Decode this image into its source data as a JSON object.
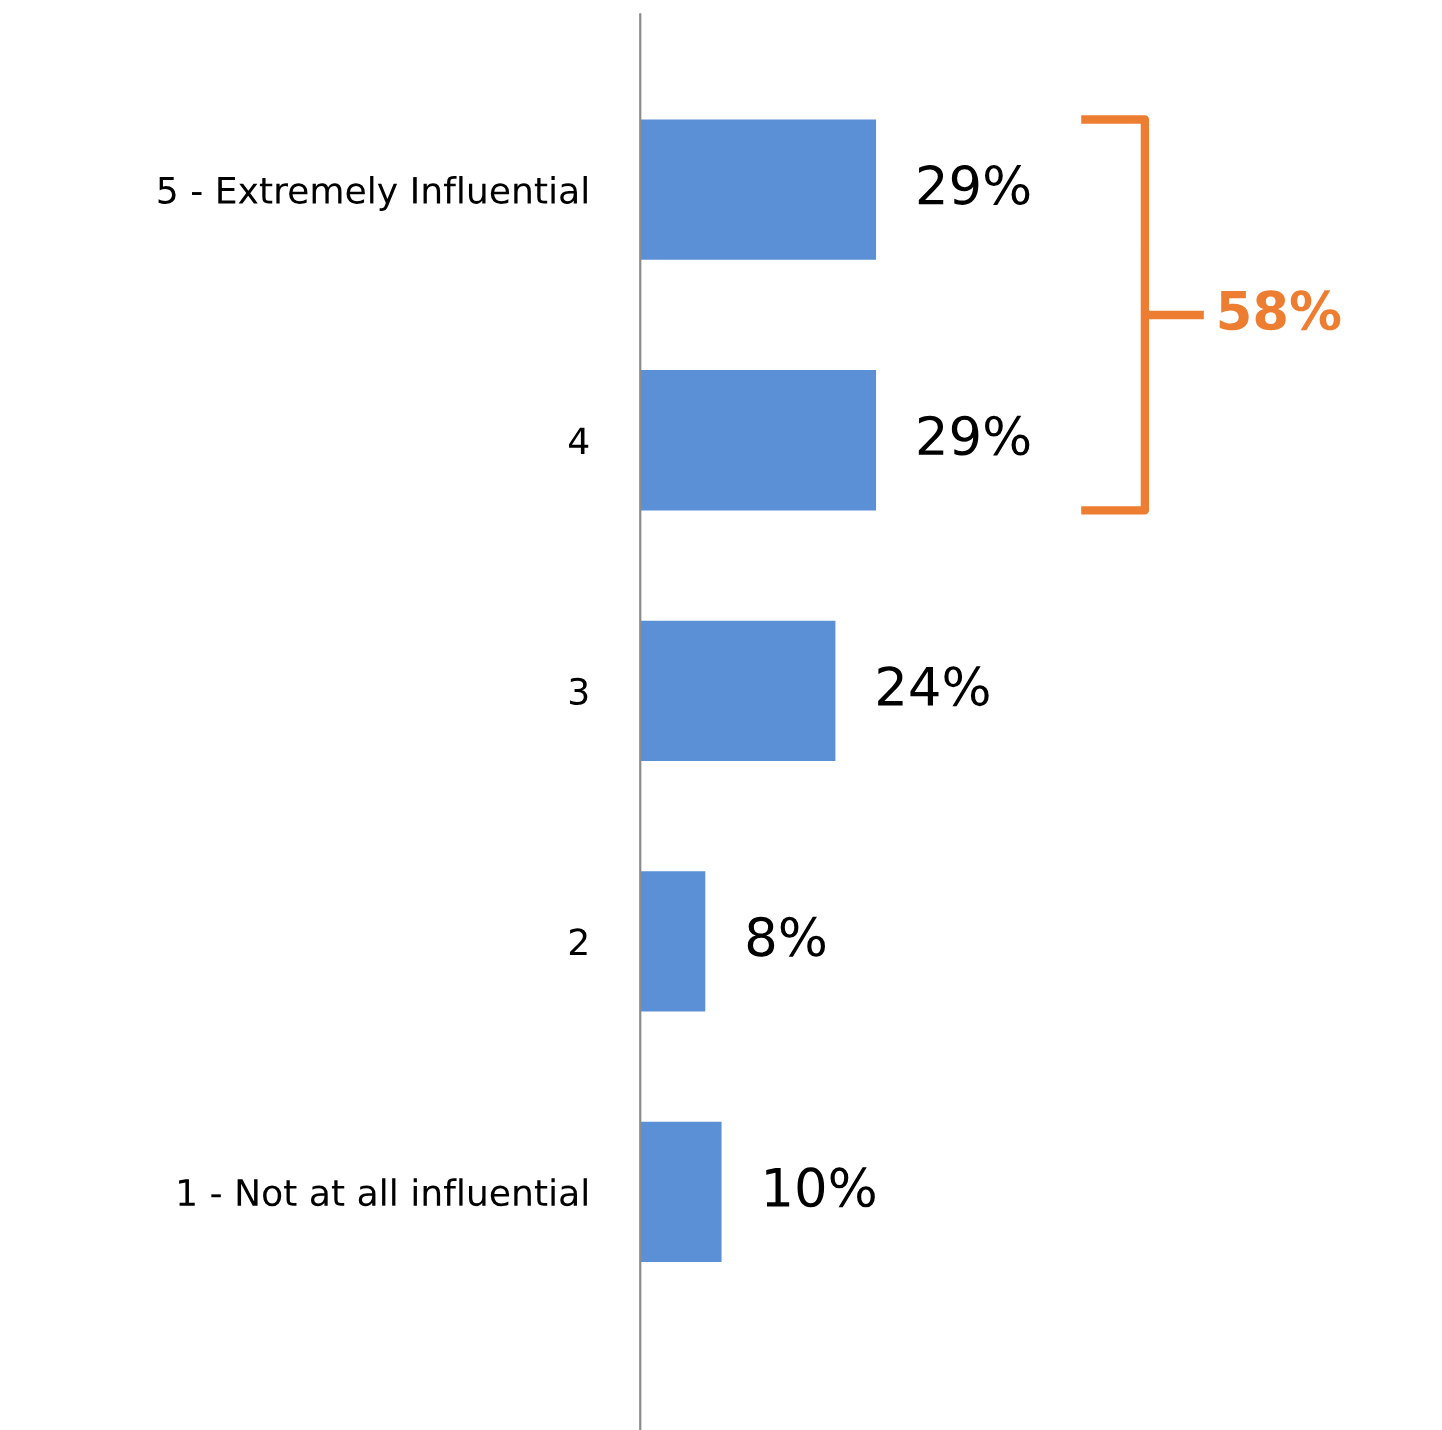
{
  "chart_data": {
    "type": "bar",
    "orientation": "horizontal",
    "data_labels": true,
    "categories": [
      "5 - Extremely Influential",
      "4",
      "3",
      "2",
      "1 - Not at all influential"
    ],
    "values": [
      29,
      29,
      24,
      8,
      10
    ],
    "value_labels": [
      "29%",
      "29%",
      "24%",
      "8%",
      "10%"
    ],
    "color": "#5b8fd6",
    "annotations": [
      "58%"
    ]
  }
}
